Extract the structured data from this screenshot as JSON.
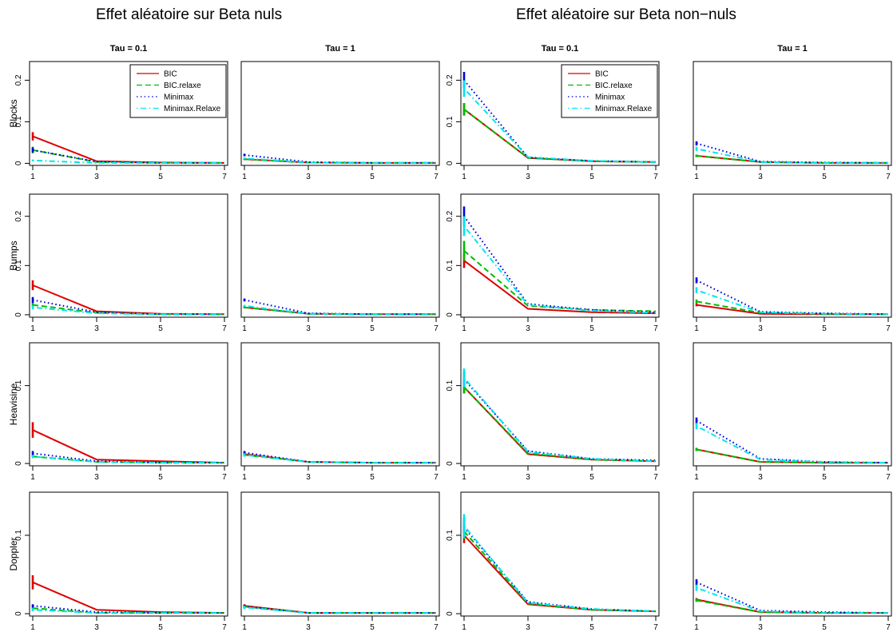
{
  "titles": {
    "left": "Effet aléatoire sur Beta nuls",
    "right": "Effet aléatoire sur Beta non−nuls"
  },
  "column_labels": [
    "Tau = 0.1",
    "Tau = 1",
    "Tau = 0.1",
    "Tau = 1"
  ],
  "row_labels": [
    "Blocks",
    "Bumps",
    "Heavisine",
    "Doppler"
  ],
  "legend": {
    "entries": [
      "BIC",
      "BIC.relaxe",
      "Minimax",
      "Minimax.Relaxe"
    ],
    "colors": [
      "#dd0000",
      "#00bb00",
      "#0000dd",
      "#00e5ee"
    ],
    "styles": [
      "solid",
      "dashed",
      "dotted",
      "dotdash"
    ]
  },
  "chart_data": {
    "type": "line",
    "x": [
      1,
      3,
      5,
      7
    ],
    "xticks": [
      1,
      3,
      5,
      7
    ],
    "xlim": [
      0.9,
      7.1
    ],
    "rows": [
      {
        "name": "Blocks",
        "ylim": [
          -0.005,
          0.245
        ],
        "yticks": [
          0,
          0.1,
          0.2
        ],
        "ytick_labels": [
          "0",
          "0.1",
          "0.2"
        ]
      },
      {
        "name": "Bumps",
        "ylim": [
          -0.005,
          0.245
        ],
        "yticks": [
          0,
          0.1,
          0.2
        ],
        "ytick_labels": [
          "0",
          "0.1",
          "0.2"
        ]
      },
      {
        "name": "Heavisine",
        "ylim": [
          -0.003,
          0.155
        ],
        "yticks": [
          0,
          0.1
        ],
        "ytick_labels": [
          "0",
          "0.1"
        ]
      },
      {
        "name": "Doppler",
        "ylim": [
          -0.003,
          0.155
        ],
        "yticks": [
          0,
          0.1
        ],
        "ytick_labels": [
          "0",
          "0.1"
        ]
      }
    ],
    "legend_panels": [
      "0-0",
      "0-2"
    ],
    "panels": [
      {
        "row": 0,
        "col": 0,
        "series": [
          {
            "values": [
              0.065,
              0.005,
              0.002,
              0.001
            ],
            "err": [
              0.01,
              0,
              0,
              0
            ]
          },
          {
            "values": [
              0.032,
              0.003,
              0.001,
              0.001
            ],
            "err": [
              0.008,
              0,
              0,
              0
            ]
          },
          {
            "values": [
              0.032,
              0.004,
              0.001,
              0.001
            ],
            "err": [
              0.006,
              0,
              0,
              0
            ]
          },
          {
            "values": [
              0.007,
              0.001,
              0.001,
              0.001
            ],
            "err": [
              0.002,
              0,
              0,
              0
            ]
          }
        ]
      },
      {
        "row": 0,
        "col": 1,
        "series": [
          {
            "values": [
              0.01,
              0.002,
              0.001,
              0.001
            ],
            "err": [
              0.002,
              0,
              0,
              0
            ]
          },
          {
            "values": [
              0.01,
              0.002,
              0.001,
              0.001
            ],
            "err": [
              0.002,
              0,
              0,
              0
            ]
          },
          {
            "values": [
              0.02,
              0.003,
              0.001,
              0.001
            ],
            "err": [
              0.003,
              0,
              0,
              0
            ]
          },
          {
            "values": [
              0.012,
              0.002,
              0.001,
              0.001
            ],
            "err": [
              0.002,
              0,
              0,
              0
            ]
          }
        ]
      },
      {
        "row": 0,
        "col": 2,
        "series": [
          {
            "values": [
              0.13,
              0.013,
              0.005,
              0.003
            ],
            "err": [
              0.015,
              0,
              0,
              0
            ]
          },
          {
            "values": [
              0.13,
              0.013,
              0.005,
              0.003
            ],
            "err": [
              0.015,
              0,
              0,
              0
            ]
          },
          {
            "values": [
              0.2,
              0.014,
              0.006,
              0.003
            ],
            "err": [
              0.02,
              0,
              0,
              0
            ]
          },
          {
            "values": [
              0.18,
              0.015,
              0.006,
              0.003
            ],
            "err": [
              0.02,
              0,
              0,
              0
            ]
          }
        ]
      },
      {
        "row": 0,
        "col": 3,
        "series": [
          {
            "values": [
              0.018,
              0.003,
              0.001,
              0.001
            ],
            "err": [
              0.003,
              0,
              0,
              0
            ]
          },
          {
            "values": [
              0.018,
              0.003,
              0.001,
              0.001
            ],
            "err": [
              0.003,
              0,
              0,
              0
            ]
          },
          {
            "values": [
              0.048,
              0.004,
              0.002,
              0.001
            ],
            "err": [
              0.005,
              0,
              0,
              0
            ]
          },
          {
            "values": [
              0.035,
              0.003,
              0.001,
              0.001
            ],
            "err": [
              0.005,
              0,
              0,
              0
            ]
          }
        ]
      },
      {
        "row": 1,
        "col": 0,
        "series": [
          {
            "values": [
              0.06,
              0.007,
              0.002,
              0.001
            ],
            "err": [
              0.01,
              0,
              0,
              0
            ]
          },
          {
            "values": [
              0.02,
              0.004,
              0.001,
              0.001
            ],
            "err": [
              0.005,
              0,
              0,
              0
            ]
          },
          {
            "values": [
              0.03,
              0.005,
              0.001,
              0.001
            ],
            "err": [
              0.006,
              0,
              0,
              0
            ]
          },
          {
            "values": [
              0.015,
              0.003,
              0.001,
              0.001
            ],
            "err": [
              0.004,
              0,
              0,
              0
            ]
          }
        ]
      },
      {
        "row": 1,
        "col": 1,
        "series": [
          {
            "values": [
              0.015,
              0.002,
              0.001,
              0.001
            ],
            "err": [
              0.002,
              0,
              0,
              0
            ]
          },
          {
            "values": [
              0.015,
              0.002,
              0.001,
              0.001
            ],
            "err": [
              0.002,
              0,
              0,
              0
            ]
          },
          {
            "values": [
              0.03,
              0.003,
              0.001,
              0.001
            ],
            "err": [
              0.003,
              0,
              0,
              0
            ]
          },
          {
            "values": [
              0.018,
              0.002,
              0.001,
              0.001
            ],
            "err": [
              0.002,
              0,
              0,
              0
            ]
          }
        ]
      },
      {
        "row": 1,
        "col": 2,
        "series": [
          {
            "values": [
              0.11,
              0.012,
              0.005,
              0.003
            ],
            "err": [
              0.015,
              0,
              0,
              0
            ]
          },
          {
            "values": [
              0.13,
              0.018,
              0.01,
              0.007
            ],
            "err": [
              0.02,
              0,
              0,
              0
            ]
          },
          {
            "values": [
              0.2,
              0.022,
              0.01,
              0.005
            ],
            "err": [
              0.02,
              0,
              0,
              0
            ]
          },
          {
            "values": [
              0.18,
              0.02,
              0.008,
              0.004
            ],
            "err": [
              0.02,
              0,
              0,
              0
            ]
          }
        ]
      },
      {
        "row": 1,
        "col": 3,
        "series": [
          {
            "values": [
              0.02,
              0.002,
              0.001,
              0.001
            ],
            "err": [
              0.003,
              0,
              0,
              0
            ]
          },
          {
            "values": [
              0.027,
              0.004,
              0.002,
              0.001
            ],
            "err": [
              0.004,
              0,
              0,
              0
            ]
          },
          {
            "values": [
              0.07,
              0.006,
              0.003,
              0.001
            ],
            "err": [
              0.006,
              0,
              0,
              0
            ]
          },
          {
            "values": [
              0.05,
              0.005,
              0.002,
              0.001
            ],
            "err": [
              0.006,
              0,
              0,
              0
            ]
          }
        ]
      },
      {
        "row": 2,
        "col": 0,
        "series": [
          {
            "values": [
              0.043,
              0.005,
              0.003,
              0.001
            ],
            "err": [
              0.01,
              0,
              0,
              0
            ]
          },
          {
            "values": [
              0.009,
              0.002,
              0.001,
              0.001
            ],
            "err": [
              0.002,
              0,
              0,
              0
            ]
          },
          {
            "values": [
              0.013,
              0.003,
              0.001,
              0.001
            ],
            "err": [
              0.003,
              0,
              0,
              0
            ]
          },
          {
            "values": [
              0.009,
              0.002,
              0.001,
              0.001
            ],
            "err": [
              0.002,
              0,
              0,
              0
            ]
          }
        ]
      },
      {
        "row": 2,
        "col": 1,
        "series": [
          {
            "values": [
              0.012,
              0.002,
              0.001,
              0.001
            ],
            "err": [
              0.002,
              0,
              0,
              0
            ]
          },
          {
            "values": [
              0.011,
              0.002,
              0.001,
              0.001
            ],
            "err": [
              0.002,
              0,
              0,
              0
            ]
          },
          {
            "values": [
              0.014,
              0.002,
              0.001,
              0.001
            ],
            "err": [
              0.002,
              0,
              0,
              0
            ]
          },
          {
            "values": [
              0.011,
              0.002,
              0.001,
              0.001
            ],
            "err": [
              0.002,
              0,
              0,
              0
            ]
          }
        ]
      },
      {
        "row": 2,
        "col": 2,
        "series": [
          {
            "values": [
              0.098,
              0.012,
              0.005,
              0.003
            ],
            "err": [
              0.008,
              0,
              0,
              0
            ]
          },
          {
            "values": [
              0.098,
              0.013,
              0.005,
              0.003
            ],
            "err": [
              0.008,
              0,
              0,
              0
            ]
          },
          {
            "values": [
              0.108,
              0.016,
              0.006,
              0.004
            ],
            "err": [
              0.01,
              0,
              0,
              0
            ]
          },
          {
            "values": [
              0.11,
              0.015,
              0.006,
              0.003
            ],
            "err": [
              0.012,
              0,
              0,
              0
            ]
          }
        ]
      },
      {
        "row": 2,
        "col": 3,
        "series": [
          {
            "values": [
              0.018,
              0.002,
              0.001,
              0.001
            ],
            "err": [
              0.002,
              0,
              0,
              0
            ]
          },
          {
            "values": [
              0.018,
              0.002,
              0.001,
              0.001
            ],
            "err": [
              0.002,
              0,
              0,
              0
            ]
          },
          {
            "values": [
              0.055,
              0.006,
              0.002,
              0.001
            ],
            "err": [
              0.004,
              0,
              0,
              0
            ]
          },
          {
            "values": [
              0.048,
              0.005,
              0.002,
              0.001
            ],
            "err": [
              0.004,
              0,
              0,
              0
            ]
          }
        ]
      },
      {
        "row": 3,
        "col": 0,
        "series": [
          {
            "values": [
              0.04,
              0.005,
              0.002,
              0.001
            ],
            "err": [
              0.009,
              0,
              0,
              0
            ]
          },
          {
            "values": [
              0.007,
              0.001,
              0.001,
              0.001
            ],
            "err": [
              0.002,
              0,
              0,
              0
            ]
          },
          {
            "values": [
              0.01,
              0.002,
              0.001,
              0.001
            ],
            "err": [
              0.002,
              0,
              0,
              0
            ]
          },
          {
            "values": [
              0.005,
              0.001,
              0.001,
              0.001
            ],
            "err": [
              0.002,
              0,
              0,
              0
            ]
          }
        ]
      },
      {
        "row": 3,
        "col": 1,
        "series": [
          {
            "values": [
              0.01,
              0.001,
              0.001,
              0.001
            ],
            "err": [
              0.002,
              0,
              0,
              0
            ]
          },
          {
            "values": [
              0.009,
              0.001,
              0.001,
              0.001
            ],
            "err": [
              0.002,
              0,
              0,
              0
            ]
          },
          {
            "values": [
              0.009,
              0.001,
              0.001,
              0.001
            ],
            "err": [
              0.002,
              0,
              0,
              0
            ]
          },
          {
            "values": [
              0.008,
              0.001,
              0.001,
              0.001
            ],
            "err": [
              0.002,
              0,
              0,
              0
            ]
          }
        ]
      },
      {
        "row": 3,
        "col": 2,
        "series": [
          {
            "values": [
              0.1,
              0.012,
              0.005,
              0.003
            ],
            "err": [
              0.01,
              0,
              0,
              0
            ]
          },
          {
            "values": [
              0.105,
              0.013,
              0.005,
              0.003
            ],
            "err": [
              0.01,
              0,
              0,
              0
            ]
          },
          {
            "values": [
              0.11,
              0.015,
              0.006,
              0.003
            ],
            "err": [
              0.012,
              0,
              0,
              0
            ]
          },
          {
            "values": [
              0.112,
              0.014,
              0.006,
              0.003
            ],
            "err": [
              0.015,
              0,
              0,
              0
            ]
          }
        ]
      },
      {
        "row": 3,
        "col": 3,
        "series": [
          {
            "values": [
              0.018,
              0.002,
              0.001,
              0.001
            ],
            "err": [
              0.002,
              0,
              0,
              0
            ]
          },
          {
            "values": [
              0.017,
              0.002,
              0.001,
              0.001
            ],
            "err": [
              0.002,
              0,
              0,
              0
            ]
          },
          {
            "values": [
              0.04,
              0.004,
              0.002,
              0.001
            ],
            "err": [
              0.004,
              0,
              0,
              0
            ]
          },
          {
            "values": [
              0.033,
              0.003,
              0.001,
              0.001
            ],
            "err": [
              0.004,
              0,
              0,
              0
            ]
          }
        ]
      }
    ]
  }
}
